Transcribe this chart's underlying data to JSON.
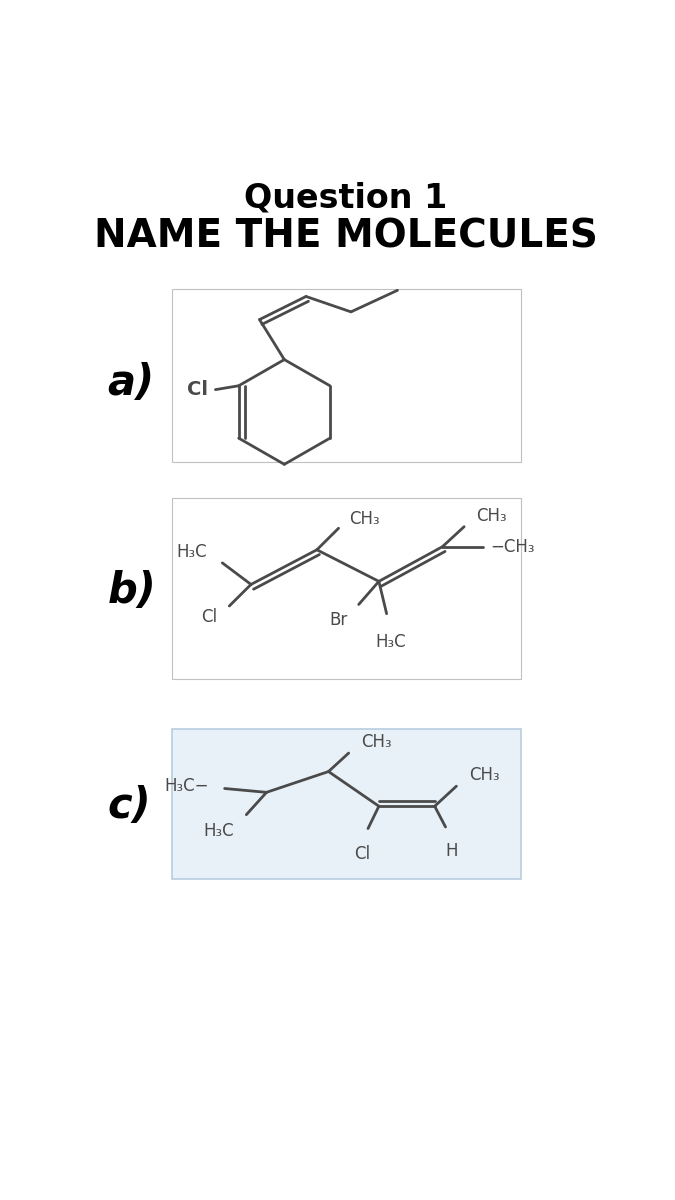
{
  "title_line1": "Question 1",
  "title_line2": "NAME THE MOLECULES",
  "background_color": "#ffffff",
  "box_color_c": "#e8f0f8",
  "box_edge_color_c": "#b8cce0",
  "box_edge_color_ab": "#c0c0c0",
  "label_a": "a)",
  "label_b": "b)",
  "label_c": "c)",
  "label_fontsize": 30,
  "title_fontsize1": 24,
  "title_fontsize2": 28,
  "chem_fontsize": 12,
  "chem_color": "#4a4a4a",
  "line_width": 2.0,
  "dbo": 0.05
}
